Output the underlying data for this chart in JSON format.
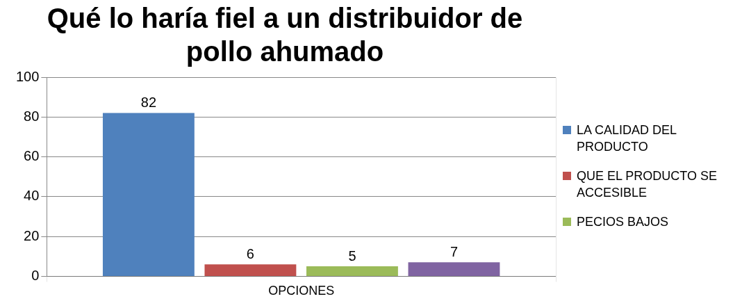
{
  "chart_data": {
    "type": "bar",
    "title": "Qué lo haría fiel a un distribuidor de pollo ahumado",
    "categories": [
      "OPCIONES"
    ],
    "series": [
      {
        "name": "LA CALIDAD DEL PRODUCTO",
        "color": "#4f81bd",
        "values": [
          82
        ]
      },
      {
        "name": "QUE EL PRODUCTO SE ACCESIBLE",
        "color": "#c0504d",
        "values": [
          6
        ]
      },
      {
        "name": "PECIOS BAJOS",
        "color": "#9bbb59",
        "values": [
          5
        ]
      },
      {
        "color": "#8064a2",
        "values": [
          7
        ]
      }
    ],
    "ylim": [
      0,
      100
    ],
    "yticks": [
      0,
      20,
      40,
      60,
      80,
      100
    ],
    "grid": true,
    "legend": "right",
    "data_labels": true
  }
}
